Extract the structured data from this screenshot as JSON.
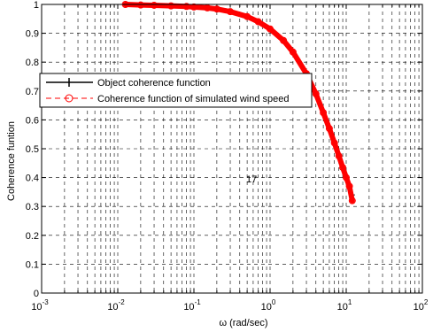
{
  "chart_data": {
    "type": "line",
    "xscale": "log",
    "xlim": [
      0.001,
      100
    ],
    "ylim": [
      0,
      1
    ],
    "xlabel": "ω (rad/sec)",
    "ylabel": "Coherence funtion",
    "x_tick_labels": [
      {
        "base": "10",
        "exp": "-3"
      },
      {
        "base": "10",
        "exp": "-2"
      },
      {
        "base": "10",
        "exp": "-1"
      },
      {
        "base": "10",
        "exp": "0"
      },
      {
        "base": "10",
        "exp": "1"
      },
      {
        "base": "10",
        "exp": "2"
      }
    ],
    "y_ticks": [
      0,
      0.1,
      0.2,
      0.3,
      0.4,
      0.5,
      0.6,
      0.7,
      0.8,
      0.9,
      1
    ],
    "y_tick_labels": [
      "0",
      "0.1",
      "0.2",
      "0.3",
      "0.4",
      "0.5",
      "0.6",
      "0.7",
      "0.8",
      "0.9",
      "1"
    ],
    "grid": "dashed",
    "legend_placement": "left, upper-middle",
    "annotation": "17",
    "series": [
      {
        "name": "Object coherence function",
        "color": "#000000",
        "marker": "+",
        "x": [
          0.0126,
          0.02,
          0.03,
          0.05,
          0.08,
          0.1,
          0.15,
          0.2,
          0.3,
          0.5,
          0.7,
          1.0,
          1.5,
          2.0,
          3.0,
          4.0,
          5.0,
          6.0,
          7.0,
          8.0,
          9.0,
          10.0,
          11.0,
          12.0
        ],
        "y": [
          1.0,
          0.998,
          0.997,
          0.995,
          0.993,
          0.991,
          0.988,
          0.984,
          0.975,
          0.958,
          0.94,
          0.915,
          0.875,
          0.835,
          0.76,
          0.69,
          0.625,
          0.57,
          0.52,
          0.475,
          0.435,
          0.4,
          0.37,
          0.34
        ]
      },
      {
        "name": "Coherence function of simulated wind speed",
        "color": "#ff0000",
        "marker": "o",
        "x": [
          0.0126,
          0.02,
          0.03,
          0.05,
          0.08,
          0.1,
          0.15,
          0.2,
          0.3,
          0.5,
          0.7,
          1.0,
          1.5,
          2.0,
          3.0,
          4.0,
          5.0,
          6.0,
          7.0,
          8.0,
          9.0,
          10.0,
          11.0,
          12.0
        ],
        "y": [
          1.0,
          0.998,
          0.997,
          0.995,
          0.993,
          0.991,
          0.988,
          0.984,
          0.975,
          0.958,
          0.94,
          0.915,
          0.875,
          0.835,
          0.76,
          0.69,
          0.625,
          0.57,
          0.52,
          0.475,
          0.435,
          0.4,
          0.37,
          0.32
        ]
      }
    ]
  }
}
